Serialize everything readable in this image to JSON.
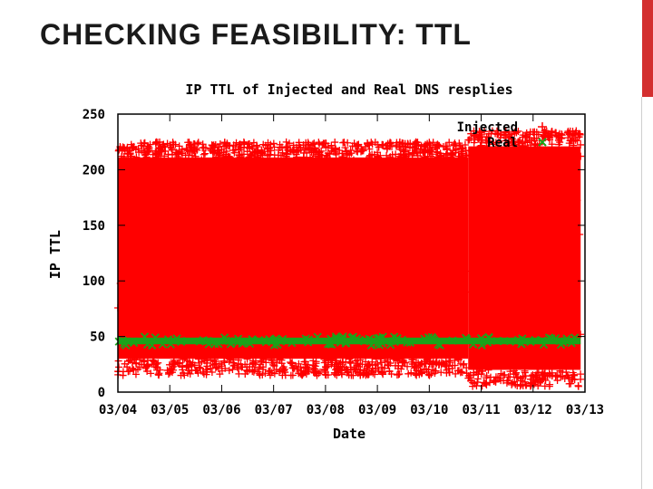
{
  "slide": {
    "title": "CHECKING FEASIBILITY: TTL",
    "accent_color": "#d32f2f"
  },
  "chart_data": {
    "type": "scatter",
    "title": "IP TTL of Injected and Real DNS resplies",
    "xlabel": "Date",
    "ylabel": "IP TTL",
    "x_ticks": [
      "03/04",
      "03/05",
      "03/06",
      "03/07",
      "03/08",
      "03/09",
      "03/10",
      "03/11",
      "03/12",
      "03/13"
    ],
    "ylim": [
      0,
      250
    ],
    "y_ticks": [
      0,
      50,
      100,
      150,
      200,
      250
    ],
    "legend_position": "top-right",
    "grid": false,
    "series": [
      {
        "name": "Injected",
        "marker": "+",
        "color": "#ff0000",
        "segments": [
          {
            "x_start": "03/04",
            "x_end": "03/10 18:00",
            "y_min": 15,
            "y_max": 225
          },
          {
            "x_start": "03/10 18:00",
            "x_end": "03/12 22:00",
            "y_min": 5,
            "y_max": 235
          }
        ]
      },
      {
        "name": "Real",
        "marker": "x",
        "color": "#1aa31a",
        "y_band": [
          43,
          49
        ]
      }
    ]
  }
}
